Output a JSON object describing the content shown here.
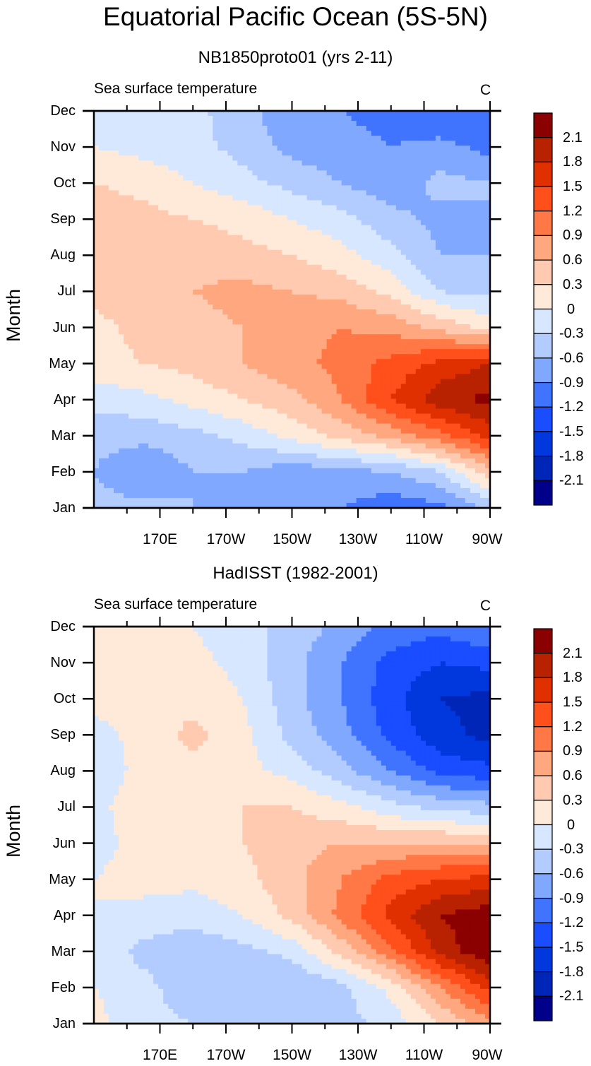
{
  "title": "Equatorial Pacific Ocean (5S-5N)",
  "chart_data": [
    {
      "type": "heatmap",
      "title": "NB1850proto01 (yrs 2-11)",
      "left_string": "Sea surface temperature",
      "right_string": "C",
      "xlabel": "",
      "ylabel": "Month",
      "x_ticks": [
        "170E",
        "170W",
        "150W",
        "130W",
        "110W",
        "90W"
      ],
      "x_tick_lon": [
        170,
        190,
        210,
        230,
        250,
        270
      ],
      "x_range_lon": [
        150,
        270
      ],
      "y_ticks": [
        "Jan",
        "Feb",
        "Mar",
        "Apr",
        "May",
        "Jun",
        "Jul",
        "Aug",
        "Sep",
        "Oct",
        "Nov",
        "Dec"
      ],
      "colorbar_levels": [
        -2.1,
        -1.8,
        -1.5,
        -1.2,
        -0.9,
        -0.6,
        -0.3,
        0,
        0.3,
        0.6,
        0.9,
        1.2,
        1.5,
        1.8,
        2.1
      ],
      "colorbar_labels": [
        "2.1",
        "1.8",
        "1.5",
        "1.2",
        "0.9",
        "0.6",
        "0.3",
        "0",
        "-0.3",
        "-0.6",
        "-0.9",
        "-1.2",
        "-1.5",
        "-1.8",
        "-2.1"
      ],
      "grid_lon": [
        150,
        165,
        180,
        195,
        210,
        225,
        240,
        255,
        270
      ],
      "grid_month": [
        1,
        2,
        3,
        4,
        5,
        6,
        7,
        8,
        9,
        10,
        11,
        12
      ],
      "values": [
        [
          -0.5,
          -0.5,
          -0.6,
          -0.7,
          -0.8,
          -0.9,
          -1.1,
          -1.0,
          -0.5
        ],
        [
          -0.6,
          -0.9,
          -0.6,
          -0.6,
          -0.8,
          -0.7,
          -0.6,
          -0.3,
          0.5
        ],
        [
          -0.5,
          -0.5,
          -0.4,
          -0.2,
          0.1,
          0.4,
          0.7,
          1.1,
          1.6
        ],
        [
          -0.2,
          -0.1,
          0.1,
          0.3,
          0.5,
          0.9,
          1.5,
          2.0,
          2.2
        ],
        [
          0.2,
          0.3,
          0.4,
          0.6,
          0.8,
          1.0,
          1.3,
          1.6,
          1.8
        ],
        [
          0.2,
          0.4,
          0.5,
          0.6,
          0.8,
          0.9,
          0.8,
          0.5,
          0.2
        ],
        [
          0.4,
          0.5,
          0.6,
          0.7,
          0.6,
          0.5,
          0.2,
          -0.3,
          -0.4
        ],
        [
          0.5,
          0.5,
          0.5,
          0.4,
          0.3,
          0.1,
          -0.2,
          -0.6,
          -0.6
        ],
        [
          0.5,
          0.4,
          0.3,
          0.2,
          0.0,
          -0.2,
          -0.5,
          -0.7,
          -0.6
        ],
        [
          0.3,
          0.2,
          0.0,
          -0.2,
          -0.4,
          -0.6,
          -0.8,
          -0.5,
          -0.6
        ],
        [
          0.0,
          -0.1,
          -0.2,
          -0.4,
          -0.7,
          -0.8,
          -0.9,
          -0.8,
          -1.0
        ],
        [
          -0.1,
          -0.1,
          -0.2,
          -0.5,
          -0.8,
          -0.9,
          -1.0,
          -1.2,
          -1.2
        ]
      ]
    },
    {
      "type": "heatmap",
      "title": "HadISST (1982-2001)",
      "left_string": "Sea surface temperature",
      "right_string": "C",
      "xlabel": "",
      "ylabel": "Month",
      "x_ticks": [
        "170E",
        "170W",
        "150W",
        "130W",
        "110W",
        "90W"
      ],
      "x_tick_lon": [
        170,
        190,
        210,
        230,
        250,
        270
      ],
      "x_range_lon": [
        150,
        270
      ],
      "y_ticks": [
        "Jan",
        "Feb",
        "Mar",
        "Apr",
        "May",
        "Jun",
        "Jul",
        "Aug",
        "Sep",
        "Oct",
        "Nov",
        "Dec"
      ],
      "colorbar_levels": [
        -2.1,
        -1.8,
        -1.5,
        -1.2,
        -0.9,
        -0.6,
        -0.3,
        0,
        0.3,
        0.6,
        0.9,
        1.2,
        1.5,
        1.8,
        2.1
      ],
      "colorbar_labels": [
        "2.1",
        "1.8",
        "1.5",
        "1.2",
        "0.9",
        "0.6",
        "0.3",
        "0",
        "-0.3",
        "-0.6",
        "-0.9",
        "-1.2",
        "-1.5",
        "-1.8",
        "-2.1"
      ],
      "grid_lon": [
        150,
        165,
        180,
        195,
        210,
        225,
        240,
        255,
        270
      ],
      "grid_month": [
        1,
        2,
        3,
        4,
        5,
        6,
        7,
        8,
        9,
        10,
        11,
        12
      ],
      "values": [
        [
          0.1,
          -0.2,
          -0.3,
          -0.5,
          -0.5,
          -0.4,
          -0.2,
          0.3,
          0.8
        ],
        [
          0.0,
          -0.2,
          -0.5,
          -0.6,
          -0.6,
          -0.4,
          0.1,
          0.9,
          1.6
        ],
        [
          -0.1,
          -0.4,
          -0.5,
          -0.4,
          -0.2,
          0.4,
          1.1,
          1.9,
          2.4
        ],
        [
          0.0,
          -0.1,
          -0.2,
          0.0,
          0.4,
          1.0,
          1.6,
          2.1,
          2.3
        ],
        [
          0.0,
          0.1,
          0.1,
          0.2,
          0.5,
          0.9,
          1.3,
          1.5,
          1.6
        ],
        [
          -0.1,
          0.1,
          0.2,
          0.3,
          0.5,
          0.6,
          0.6,
          0.6,
          0.5
        ],
        [
          -0.1,
          0.2,
          0.2,
          0.3,
          0.3,
          0.1,
          -0.2,
          -0.4,
          -0.5
        ],
        [
          -0.2,
          0.1,
          0.2,
          0.1,
          -0.1,
          -0.5,
          -0.9,
          -1.3,
          -1.4
        ],
        [
          -0.1,
          0.1,
          0.4,
          0.1,
          -0.4,
          -0.8,
          -1.3,
          -1.7,
          -1.9
        ],
        [
          0.1,
          0.1,
          0.2,
          0.0,
          -0.5,
          -0.9,
          -1.4,
          -1.8,
          -1.9
        ],
        [
          0.1,
          0.1,
          0.1,
          -0.1,
          -0.5,
          -0.9,
          -1.3,
          -1.5,
          -1.4
        ],
        [
          0.1,
          0.1,
          0.0,
          -0.2,
          -0.4,
          -0.7,
          -1.0,
          -1.1,
          -0.9
        ]
      ]
    }
  ],
  "colors": {
    "levels_fill": [
      "#00008b",
      "#0026b8",
      "#0038dd",
      "#1a4dff",
      "#4074ff",
      "#80a8ff",
      "#b3ccff",
      "#d6e7ff",
      "#ffead9",
      "#ffcab0",
      "#ffa77f",
      "#ff7846",
      "#ff4f1a",
      "#e03000",
      "#b82200",
      "#8b0000"
    ]
  }
}
